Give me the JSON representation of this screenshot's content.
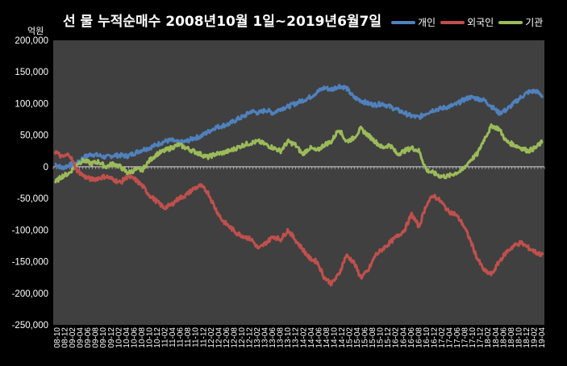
{
  "chart_data": {
    "type": "line",
    "title": "선 물 누적순매수 2008년10월 1일~2019년6월7일",
    "unit_label": "억원",
    "ylim": [
      -250000,
      200000
    ],
    "y_ticks": [
      200000,
      150000,
      100000,
      50000,
      0,
      -50000,
      -100000,
      -150000,
      -200000,
      -250000
    ],
    "y_tick_labels": [
      "200,000",
      "150,000",
      "100,000",
      "50,000",
      "0",
      "-50,000",
      "-100,000",
      "-150,000",
      "-200,000",
      "-250,000"
    ],
    "x_tick_labels": [
      "08-10",
      "08-12",
      "09-02",
      "09-04",
      "09-06",
      "09-08",
      "09-10",
      "09-12",
      "10-02",
      "10-04",
      "10-06",
      "10-08",
      "10-10",
      "10-12",
      "11-02",
      "11-04",
      "11-06",
      "11-08",
      "11-10",
      "11-12",
      "12-02",
      "12-04",
      "12-06",
      "12-08",
      "12-10",
      "12-12",
      "13-02",
      "13-04",
      "13-06",
      "13-08",
      "13-10",
      "13-12",
      "14-02",
      "14-04",
      "14-06",
      "14-08",
      "14-10",
      "14-12",
      "15-02",
      "15-04",
      "15-06",
      "15-08",
      "15-10",
      "15-12",
      "16-02",
      "16-04",
      "16-06",
      "16-08",
      "16-10",
      "16-12",
      "17-02",
      "17-04",
      "17-06",
      "17-08",
      "17-10",
      "17-12",
      "18-02",
      "18-04",
      "18-06",
      "18-08",
      "18-10",
      "18-12",
      "19-02",
      "19-04"
    ],
    "legend_position": "top-right",
    "grid": false,
    "series": [
      {
        "name": "개인",
        "color": "#4f81bd",
        "values": [
          5000,
          -2000,
          3000,
          5000,
          15000,
          20000,
          18000,
          15000,
          18000,
          18000,
          17000,
          22000,
          27000,
          30000,
          35000,
          40000,
          42000,
          38000,
          40000,
          45000,
          48000,
          55000,
          62000,
          65000,
          68000,
          75000,
          80000,
          88000,
          85000,
          90000,
          85000,
          92000,
          95000,
          100000,
          105000,
          110000,
          118000,
          125000,
          122000,
          128000,
          125000,
          110000,
          105000,
          100000,
          98000,
          100000,
          95000,
          90000,
          85000,
          80000,
          78000,
          85000,
          90000,
          92000,
          95000,
          98000,
          105000,
          110000,
          108000,
          105000,
          95000,
          85000,
          90000,
          100000,
          110000,
          118000,
          120000,
          112000
        ]
      },
      {
        "name": "외국인",
        "color": "#c0504d",
        "values": [
          25000,
          15000,
          20000,
          -5000,
          -15000,
          -20000,
          -18000,
          -15000,
          -20000,
          -25000,
          -15000,
          -20000,
          -30000,
          -45000,
          -55000,
          -65000,
          -60000,
          -50000,
          -45000,
          -35000,
          -30000,
          -40000,
          -65000,
          -85000,
          -95000,
          -105000,
          -110000,
          -115000,
          -130000,
          -120000,
          -110000,
          -115000,
          -100000,
          -115000,
          -130000,
          -145000,
          -150000,
          -175000,
          -185000,
          -170000,
          -140000,
          -150000,
          -175000,
          -165000,
          -140000,
          -130000,
          -120000,
          -110000,
          -100000,
          -75000,
          -95000,
          -60000,
          -45000,
          -55000,
          -70000,
          -75000,
          -90000,
          -115000,
          -145000,
          -165000,
          -170000,
          -150000,
          -135000,
          -125000,
          -120000,
          -128000,
          -135000,
          -140000
        ]
      },
      {
        "name": "기관",
        "color": "#9bbb59",
        "values": [
          -25000,
          -15000,
          -10000,
          5000,
          10000,
          5000,
          8000,
          0,
          5000,
          0,
          -10000,
          -5000,
          -5000,
          10000,
          20000,
          25000,
          30000,
          35000,
          30000,
          25000,
          20000,
          15000,
          20000,
          22000,
          25000,
          30000,
          35000,
          38000,
          40000,
          35000,
          30000,
          25000,
          40000,
          35000,
          20000,
          30000,
          25000,
          35000,
          40000,
          60000,
          40000,
          45000,
          60000,
          50000,
          40000,
          30000,
          35000,
          20000,
          25000,
          30000,
          25000,
          -5000,
          -10000,
          -15000,
          -15000,
          -10000,
          -5000,
          10000,
          20000,
          45000,
          65000,
          60000,
          40000,
          35000,
          30000,
          25000,
          30000,
          40000
        ]
      }
    ]
  }
}
